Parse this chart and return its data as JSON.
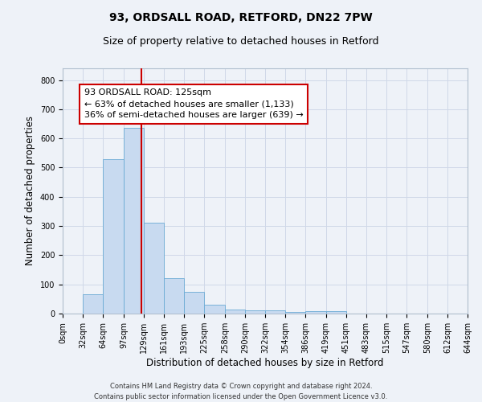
{
  "title": "93, ORDSALL ROAD, RETFORD, DN22 7PW",
  "subtitle": "Size of property relative to detached houses in Retford",
  "xlabel": "Distribution of detached houses by size in Retford",
  "ylabel": "Number of detached properties",
  "bar_color": "#c8daf0",
  "bar_edge_color": "#6aaad4",
  "grid_color": "#d0d8e8",
  "background_color": "#eef2f8",
  "property_line_x": 125,
  "property_line_color": "#cc0000",
  "annotation_text": "93 ORDSALL ROAD: 125sqm\n← 63% of detached houses are smaller (1,133)\n36% of semi-detached houses are larger (639) →",
  "annotation_box_color": "#ffffff",
  "annotation_box_edge_color": "#cc0000",
  "bin_edges": [
    0,
    32,
    64,
    97,
    129,
    161,
    193,
    225,
    258,
    290,
    322,
    354,
    386,
    419,
    451,
    483,
    515,
    547,
    580,
    612,
    644
  ],
  "bar_heights": [
    0,
    65,
    530,
    635,
    310,
    120,
    75,
    30,
    15,
    10,
    10,
    5,
    8,
    8,
    0,
    0,
    0,
    0,
    0,
    0
  ],
  "ylim": [
    0,
    840
  ],
  "yticks": [
    0,
    100,
    200,
    300,
    400,
    500,
    600,
    700,
    800
  ],
  "footer_line1": "Contains HM Land Registry data © Crown copyright and database right 2024.",
  "footer_line2": "Contains public sector information licensed under the Open Government Licence v3.0.",
  "title_fontsize": 10,
  "subtitle_fontsize": 9,
  "tick_label_fontsize": 7,
  "ylabel_fontsize": 8.5,
  "xlabel_fontsize": 8.5,
  "annotation_fontsize": 8,
  "footer_fontsize": 6
}
